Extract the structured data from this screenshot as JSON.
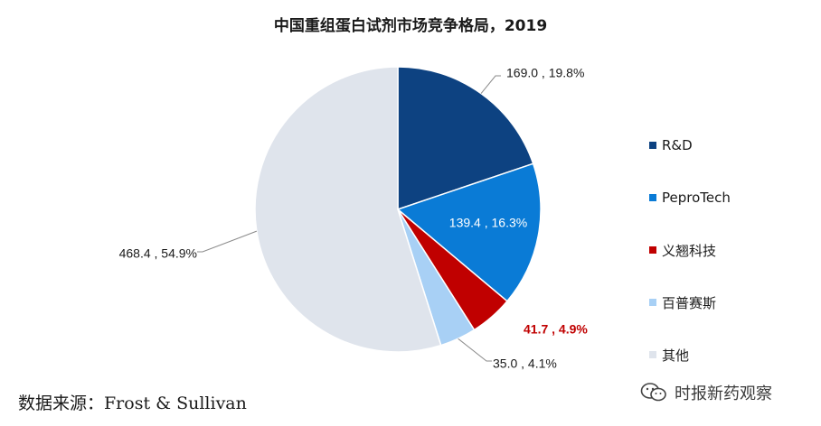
{
  "chart_data": {
    "type": "pie",
    "title": "中国重组蛋白试剂市场竞争格局，2019",
    "legend_position": "right",
    "slices": [
      {
        "name": "R&D",
        "value": 169.0,
        "percent": "19.8%",
        "label": "169.0 , 19.8%",
        "color": "#0d4281"
      },
      {
        "name": "PeproTech",
        "value": 139.4,
        "percent": "16.3%",
        "label": "139.4 , 16.3%",
        "color": "#0a7bd6"
      },
      {
        "name": "义翘科技",
        "value": 41.7,
        "percent": "4.9%",
        "label": "41.7 , 4.9%",
        "color": "#c00000"
      },
      {
        "name": "百普赛斯",
        "value": 35.0,
        "percent": "4.1%",
        "label": "35.0 , 4.1%",
        "color": "#a8d0f5"
      },
      {
        "name": "其他",
        "value": 468.4,
        "percent": "54.9%",
        "label": "468.4 , 54.9%",
        "color": "#dfe4ec"
      }
    ]
  },
  "source_note": "数据来源：Frost & Sullivan",
  "watermark": {
    "text": "时报新药观察",
    "icon": "wechat-icon"
  }
}
